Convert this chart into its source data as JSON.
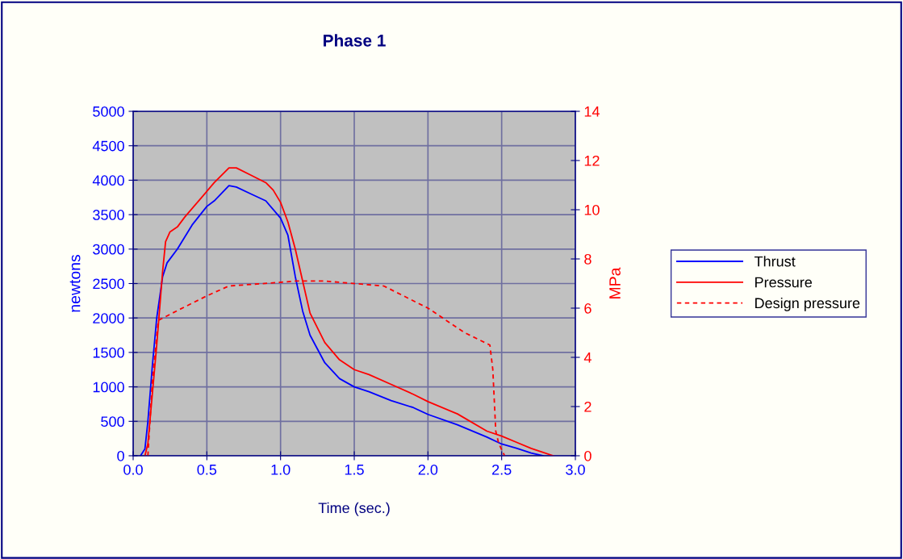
{
  "chart_data": {
    "type": "line",
    "title": "Phase 1",
    "xlabel": "Time (sec.)",
    "ylabel": "newtons",
    "y2label": "MPa",
    "xlim": [
      0,
      3
    ],
    "xticks": [
      {
        "value": 0,
        "label": "0.0"
      },
      {
        "value": 0.5,
        "label": "0.5"
      },
      {
        "value": 1,
        "label": "1.0"
      },
      {
        "value": 1.5,
        "label": "1.5"
      },
      {
        "value": 2,
        "label": "2.0"
      },
      {
        "value": 2.5,
        "label": "2.5"
      },
      {
        "value": 3,
        "label": "3.0"
      }
    ],
    "ylim": [
      0,
      5000
    ],
    "yticks": [
      0,
      500,
      1000,
      1500,
      2000,
      2500,
      3000,
      3500,
      4000,
      4500,
      5000
    ],
    "y2lim": [
      0,
      14
    ],
    "y2ticks": [
      0,
      2,
      4,
      6,
      8,
      10,
      12,
      14
    ],
    "grid": true,
    "legend": "right",
    "marker": "none",
    "series": [
      {
        "name": "Thrust",
        "color": "#0000ff",
        "line_style": "solid",
        "x": [
          0.05,
          0.08,
          0.1,
          0.13,
          0.16,
          0.2,
          0.23,
          0.3,
          0.4,
          0.5,
          0.55,
          0.65,
          0.7,
          0.8,
          0.9,
          1.0,
          1.05,
          1.1,
          1.15,
          1.2,
          1.3,
          1.4,
          1.5,
          1.6,
          1.75,
          1.9,
          2.0,
          2.2,
          2.4,
          2.5,
          2.6,
          2.7,
          2.78
        ],
        "values": [
          0,
          100,
          500,
          1300,
          2000,
          2600,
          2800,
          3000,
          3350,
          3620,
          3700,
          3920,
          3900,
          3800,
          3700,
          3450,
          3200,
          2600,
          2100,
          1750,
          1350,
          1120,
          1000,
          930,
          800,
          700,
          600,
          450,
          270,
          170,
          110,
          40,
          0
        ]
      },
      {
        "name": "Pressure",
        "color": "#ff0000",
        "line_style": "solid",
        "axis": "y2",
        "x": [
          0.08,
          0.1,
          0.13,
          0.16,
          0.2,
          0.22,
          0.25,
          0.3,
          0.35,
          0.45,
          0.55,
          0.65,
          0.7,
          0.8,
          0.9,
          0.95,
          1.0,
          1.05,
          1.1,
          1.15,
          1.2,
          1.3,
          1.4,
          1.5,
          1.6,
          1.75,
          1.9,
          2.0,
          2.2,
          2.4,
          2.5,
          2.6,
          2.7,
          2.85
        ],
        "values": [
          0,
          0.5,
          2.5,
          4.5,
          7.5,
          8.7,
          9.1,
          9.3,
          9.7,
          10.4,
          11.1,
          11.7,
          11.7,
          11.4,
          11.1,
          10.8,
          10.3,
          9.5,
          8.4,
          7.1,
          5.8,
          4.6,
          3.9,
          3.5,
          3.3,
          2.9,
          2.5,
          2.2,
          1.7,
          1.0,
          0.8,
          0.55,
          0.3,
          0
        ]
      },
      {
        "name": "Design pressure",
        "color": "#ff0000",
        "line_style": "dashed",
        "axis": "y2",
        "x": [
          0.1,
          0.13,
          0.17,
          0.3,
          0.5,
          0.65,
          1.0,
          1.1,
          1.3,
          1.7,
          2.0,
          2.25,
          2.42,
          2.44,
          2.46,
          2.48,
          2.52
        ],
        "values": [
          0,
          3,
          5.5,
          5.9,
          6.5,
          6.9,
          7.05,
          7.1,
          7.1,
          6.9,
          6.0,
          5.0,
          4.5,
          3.5,
          1.0,
          0.5,
          0
        ]
      }
    ]
  }
}
